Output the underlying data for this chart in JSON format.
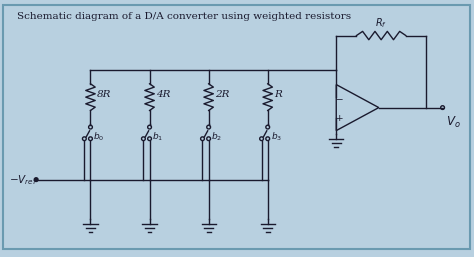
{
  "title": "Schematic diagram of a D/A converter using weighted resistors",
  "background_color": "#b8d0e0",
  "border_color": "#6a9ab0",
  "line_color": "#1a1a2e",
  "text_color": "#1a1a2e",
  "vref_label": "$-V_{ref}$",
  "vo_label": "$V_o$",
  "rf_label": "$R_f$",
  "resistor_labels": [
    "8R",
    "4R",
    "2R",
    "R"
  ],
  "switch_labels": [
    "$b_0$",
    "$b_1$",
    "$b_2$",
    "$b_3$"
  ],
  "figsize": [
    4.74,
    2.57
  ],
  "dpi": 100
}
